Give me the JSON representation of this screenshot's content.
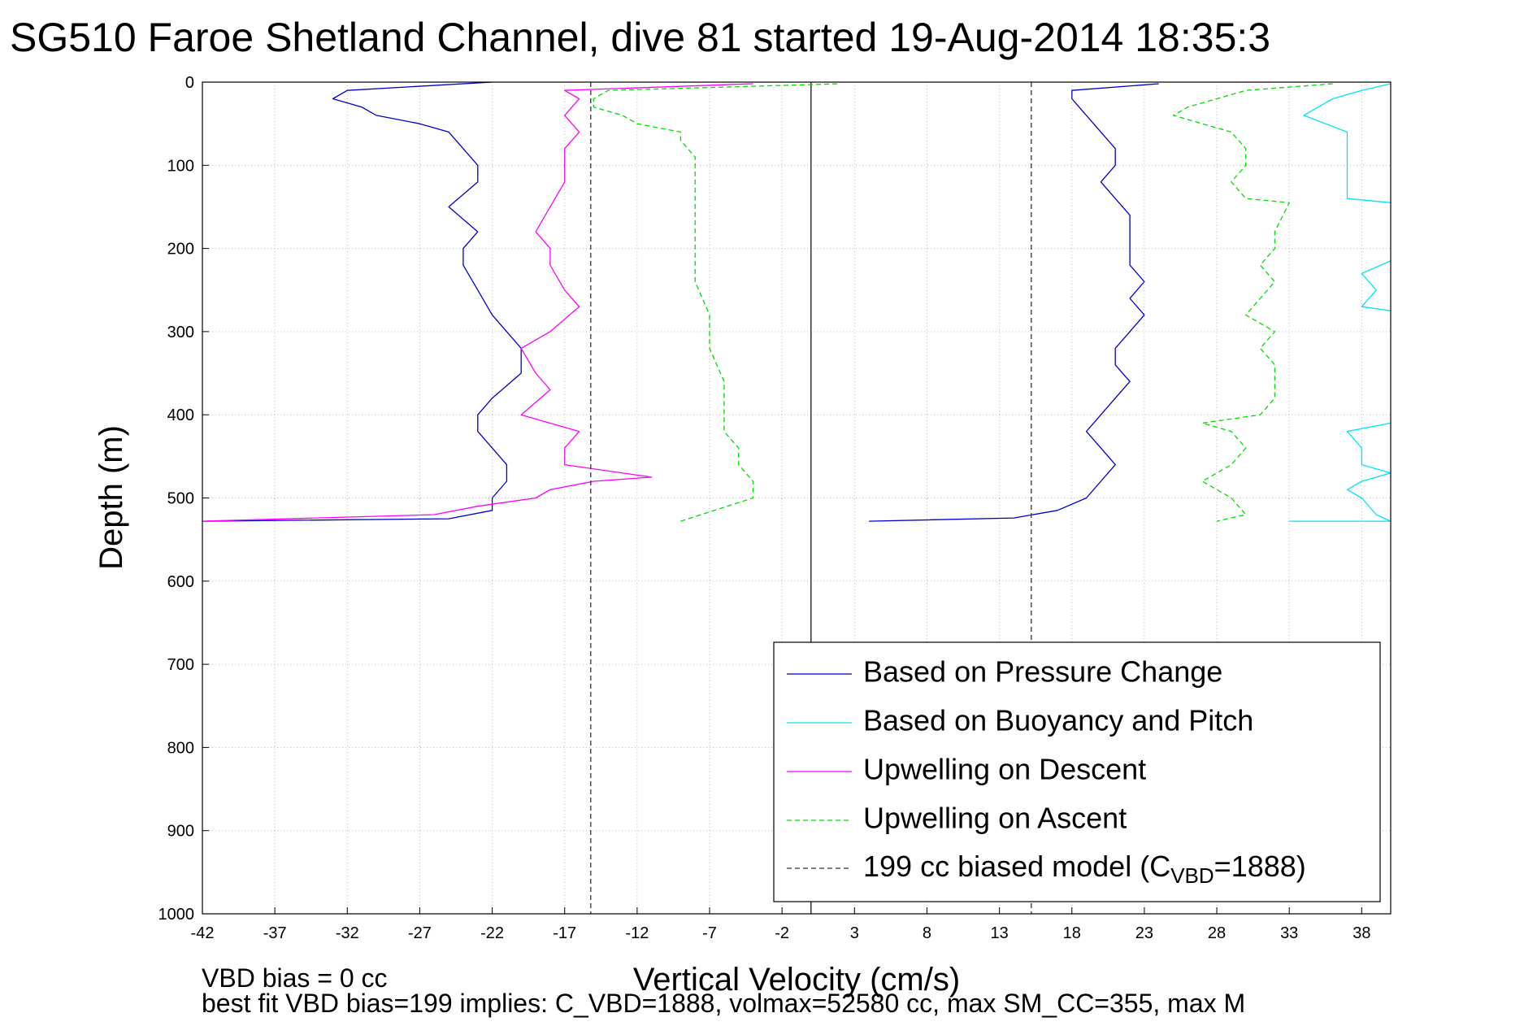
{
  "chart_data": {
    "type": "line",
    "title": "SG510 Faroe Shetland Channel, dive 81 started 19-Aug-2014 18:35:3",
    "xlabel": "Vertical Velocity (cm/s)",
    "ylabel": "Depth (m)",
    "xlim": [
      -42,
      40
    ],
    "ylim": [
      0,
      1000
    ],
    "y_reversed": true,
    "grid": true,
    "legend_position": "bottom-right",
    "x_ticks": [
      -42,
      -37,
      -32,
      -27,
      -22,
      -17,
      -12,
      -7,
      -2,
      3,
      8,
      13,
      18,
      23,
      28,
      33,
      38
    ],
    "y_ticks": [
      0,
      100,
      200,
      300,
      400,
      500,
      600,
      700,
      800,
      900,
      1000
    ],
    "zero_line": 0,
    "series": [
      {
        "name": "Based on Pressure Change",
        "color": "#0000cc",
        "dash": "solid",
        "segments": [
          {
            "depth": [
              0,
              10,
              20,
              30,
              40,
              50,
              60,
              80,
              100,
              120,
              150,
              180,
              200,
              220,
              250,
              280,
              300,
              320,
              350,
              380,
              400,
              420,
              440,
              460,
              480,
              500,
              515,
              525,
              528
            ],
            "velocity": [
              -22,
              -32,
              -33,
              -31,
              -30,
              -27,
              -25,
              -24,
              -23,
              -23,
              -25,
              -23,
              -24,
              -24,
              -23,
              -22,
              -21,
              -20,
              -20,
              -22,
              -23,
              -23,
              -22,
              -21,
              -21,
              -22,
              -22,
              -25,
              -42
            ]
          },
          {
            "depth": [
              528,
              524,
              515,
              500,
              480,
              460,
              440,
              420,
              400,
              380,
              360,
              340,
              320,
              300,
              280,
              260,
              240,
              220,
              200,
              180,
              160,
              140,
              120,
              100,
              80,
              60,
              40,
              20,
              10,
              2
            ],
            "velocity": [
              4,
              14,
              17,
              19,
              20,
              21,
              20,
              19,
              20,
              21,
              22,
              21,
              21,
              22,
              23,
              22,
              23,
              22,
              22,
              22,
              22,
              21,
              20,
              21,
              21,
              20,
              19,
              18,
              18,
              24
            ]
          }
        ]
      },
      {
        "name": "Based on Buoyancy and Pitch",
        "color": "#00e5ee",
        "dash": "solid",
        "segments": [
          {
            "depth": [
              2,
              10,
              20,
              40,
              60,
              80,
              100,
              120,
              140,
              145
            ],
            "velocity": [
              40,
              38,
              36,
              34,
              37,
              37,
              37,
              37,
              37,
              40
            ]
          },
          {
            "depth": [
              215,
              230,
              250,
              270,
              275
            ],
            "velocity": [
              40,
              38,
              39,
              38,
              40
            ]
          },
          {
            "depth": [
              410,
              420,
              440,
              460,
              470,
              480,
              490,
              500,
              520,
              528
            ],
            "velocity": [
              40,
              37,
              38,
              38,
              40,
              38,
              37,
              38,
              39,
              40
            ]
          },
          {
            "depth": [
              528,
              528
            ],
            "velocity": [
              33,
              40
            ]
          }
        ]
      },
      {
        "name": "Upwelling on Descent",
        "color": "#ff00ff",
        "dash": "solid",
        "segments": [
          {
            "depth": [
              2,
              10,
              20,
              40,
              60,
              80,
              100,
              120,
              150,
              180,
              200,
              220,
              250,
              270,
              300,
              320,
              350,
              370,
              400,
              420,
              440,
              460,
              475,
              480,
              490,
              500,
              510,
              520,
              528
            ],
            "velocity": [
              -4,
              -17,
              -16,
              -17,
              -16,
              -17,
              -17,
              -17,
              -18,
              -19,
              -18,
              -18,
              -17,
              -16,
              -18,
              -20,
              -19,
              -18,
              -20,
              -16,
              -17,
              -17,
              -11,
              -15,
              -18,
              -19,
              -23,
              -26,
              -42
            ]
          }
        ]
      },
      {
        "name": "Upwelling on Ascent",
        "color": "#00dd00",
        "dash": "dashed",
        "segments": [
          {
            "depth": [
              528,
              500,
              480,
              460,
              440,
              420,
              400,
              360,
              320,
              280,
              240,
              200,
              160,
              120,
              90,
              70,
              60,
              50,
              40,
              30,
              20,
              10,
              2
            ],
            "velocity": [
              -9,
              -4,
              -4,
              -5,
              -5,
              -6,
              -6,
              -6,
              -7,
              -7,
              -8,
              -8,
              -8,
              -8,
              -8,
              -9,
              -9,
              -12,
              -13,
              -15,
              -15,
              -14,
              2
            ]
          },
          {
            "depth": [
              2,
              10,
              20,
              30,
              40,
              50,
              60,
              80,
              100,
              120,
              140,
              145,
              180,
              200,
              220,
              240,
              260,
              280,
              300,
              320,
              340,
              380,
              400,
              410,
              420,
              440,
              460,
              480,
              500,
              520,
              528
            ],
            "velocity": [
              36,
              30,
              28,
              26,
              25,
              27,
              29,
              30,
              30,
              29,
              30,
              33,
              32,
              32,
              31,
              32,
              31,
              30,
              32,
              31,
              32,
              32,
              31,
              27,
              29,
              30,
              29,
              27,
              29,
              30,
              28
            ]
          }
        ]
      },
      {
        "name": "199 cc biased model (CVBD=1888)",
        "color": "#333333",
        "dash": "dashed",
        "segments": [
          {
            "depth": [
              0,
              1000
            ],
            "velocity": [
              -15.2,
              -15.2
            ]
          },
          {
            "depth": [
              0,
              1000
            ],
            "velocity": [
              15.2,
              15.2
            ]
          }
        ]
      }
    ]
  },
  "legend": {
    "items": [
      {
        "label": "Based on Pressure Change",
        "color": "#0000cc",
        "dash": "solid"
      },
      {
        "label": "Based on Buoyancy and Pitch",
        "color": "#00e5ee",
        "dash": "solid"
      },
      {
        "label": "Upwelling on Descent",
        "color": "#ff00ff",
        "dash": "solid"
      },
      {
        "label": "Upwelling on Ascent",
        "color": "#00dd00",
        "dash": "dashed"
      }
    ],
    "bias_item": {
      "color": "#333333",
      "dash": "dashed",
      "prefix": "199 cc biased model (C",
      "subscript": "VBD",
      "suffix": "=1888)"
    }
  },
  "footer": {
    "line1": "VBD bias = 0 cc",
    "line2": "best fit VBD bias=199 implies: C_VBD=1888, volmax=52580 cc, max SM_CC=355, max M"
  }
}
